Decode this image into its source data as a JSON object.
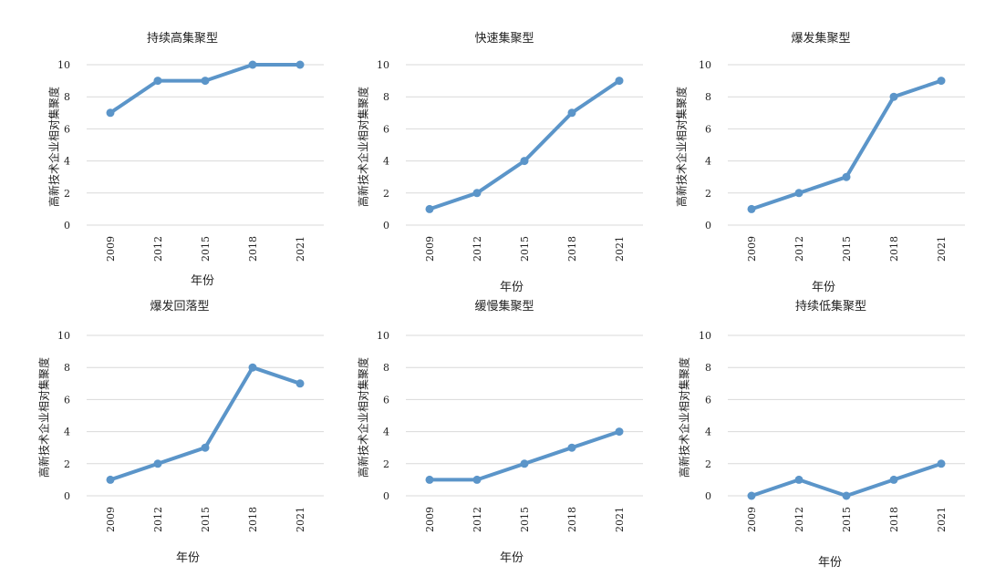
{
  "chart_data": [
    {
      "type": "line",
      "title": "持续高集聚型",
      "xlabel": "年份",
      "ylabel": "高新技术企业相对集聚度",
      "categories": [
        "2009",
        "2012",
        "2015",
        "2018",
        "2021"
      ],
      "values": [
        7,
        9,
        9,
        10,
        10
      ],
      "ylim": [
        0,
        10
      ],
      "yticks": [
        "0",
        "2",
        "4",
        "6",
        "8",
        "10"
      ],
      "grid": true,
      "color": "#5b95c9"
    },
    {
      "type": "line",
      "title": "快速集聚型",
      "xlabel": "年份",
      "ylabel": "高新技术企业相对集聚度",
      "categories": [
        "2009",
        "2012",
        "2015",
        "2018",
        "2021"
      ],
      "values": [
        1,
        2,
        4,
        7,
        9
      ],
      "ylim": [
        0,
        10
      ],
      "yticks": [
        "0",
        "2",
        "4",
        "6",
        "8",
        "10"
      ],
      "grid": true,
      "color": "#5b95c9"
    },
    {
      "type": "line",
      "title": "爆发集聚型",
      "xlabel": "年份",
      "ylabel": "高新技术企业相对集聚度",
      "categories": [
        "2009",
        "2012",
        "2015",
        "2018",
        "2021"
      ],
      "values": [
        1,
        2,
        3,
        8,
        9
      ],
      "ylim": [
        0,
        10
      ],
      "yticks": [
        "0",
        "2",
        "4",
        "6",
        "8",
        "10"
      ],
      "grid": true,
      "color": "#5b95c9"
    },
    {
      "type": "line",
      "title": "爆发回落型",
      "xlabel": "年份",
      "ylabel": "高新技术企业相对集聚度",
      "categories": [
        "2009",
        "2012",
        "2015",
        "2018",
        "2021"
      ],
      "values": [
        1,
        2,
        3,
        8,
        7
      ],
      "ylim": [
        0,
        10
      ],
      "yticks": [
        "0",
        "2",
        "4",
        "6",
        "8",
        "10"
      ],
      "grid": true,
      "color": "#5b95c9"
    },
    {
      "type": "line",
      "title": "缓慢集聚型",
      "xlabel": "年份",
      "ylabel": "高新技术企业相对集聚度",
      "categories": [
        "2009",
        "2012",
        "2015",
        "2018",
        "2021"
      ],
      "values": [
        1,
        1,
        2,
        3,
        4
      ],
      "ylim": [
        0,
        10
      ],
      "yticks": [
        "0",
        "2",
        "4",
        "6",
        "8",
        "10"
      ],
      "grid": true,
      "color": "#5b95c9"
    },
    {
      "type": "line",
      "title": "持续低集聚型",
      "xlabel": "年份",
      "ylabel": "高新技术企业相对集聚度",
      "categories": [
        "2009",
        "2012",
        "2015",
        "2018",
        "2021"
      ],
      "values": [
        0,
        1,
        0,
        1,
        2
      ],
      "ylim": [
        0,
        10
      ],
      "yticks": [
        "0",
        "2",
        "4",
        "6",
        "8",
        "10"
      ],
      "grid": true,
      "color": "#5b95c9"
    }
  ]
}
